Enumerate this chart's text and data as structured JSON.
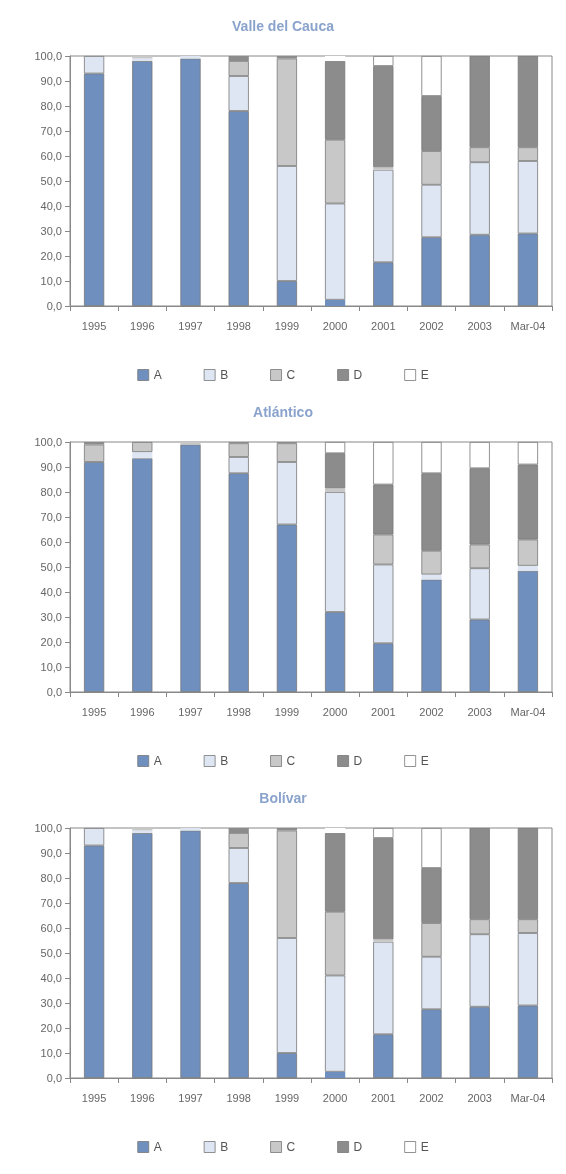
{
  "chart_data": [
    {
      "type": "bar",
      "title": "Valle del Cauca",
      "stacked": true,
      "categories": [
        "1995",
        "1996",
        "1997",
        "1998",
        "1999",
        "2000",
        "2001",
        "2002",
        "2003",
        "Mar-04"
      ],
      "series": [
        {
          "name": "A",
          "color": "#6f8fbf",
          "values": [
            93,
            98,
            99,
            78,
            10,
            2.5,
            17.5,
            27.5,
            28.5,
            29
          ]
        },
        {
          "name": "B",
          "color": "#dde6f2",
          "values": [
            7,
            1,
            1,
            14,
            46,
            38.5,
            37,
            21,
            29,
            29
          ]
        },
        {
          "name": "C",
          "color": "#c8c8c8",
          "values": [
            0,
            1,
            0,
            6,
            43,
            25.5,
            1,
            13.5,
            6,
            5.5
          ]
        },
        {
          "name": "D",
          "color": "#8c8c8c",
          "values": [
            0,
            0,
            0,
            2,
            1,
            31.5,
            40.5,
            22,
            36.5,
            36.5
          ]
        },
        {
          "name": "E",
          "color": "#ffffff",
          "values": [
            0,
            0,
            0,
            0,
            0,
            2,
            4,
            16,
            0,
            0
          ]
        }
      ],
      "ylim": [
        0,
        100
      ],
      "yticks": [
        {
          "value": 0,
          "label": "0,0"
        },
        {
          "value": 10,
          "label": "10,0"
        },
        {
          "value": 20,
          "label": "20,0"
        },
        {
          "value": 30,
          "label": "30,0"
        },
        {
          "value": 40,
          "label": "40,0"
        },
        {
          "value": 50,
          "label": "50,0"
        },
        {
          "value": 60,
          "label": "60,0"
        },
        {
          "value": 70,
          "label": "70,0"
        },
        {
          "value": 80,
          "label": "80,0"
        },
        {
          "value": 90,
          "label": "90,0"
        },
        {
          "value": 100,
          "label": "100,0"
        }
      ],
      "grid": false,
      "legend": "bottom"
    },
    {
      "type": "bar",
      "title": "Atlántico",
      "stacked": true,
      "categories": [
        "1995",
        "1996",
        "1997",
        "1998",
        "1999",
        "2000",
        "2001",
        "2002",
        "2003",
        "Mar-04"
      ],
      "series": [
        {
          "name": "A",
          "color": "#6f8fbf",
          "values": [
            92,
            93.5,
            99,
            87.5,
            67,
            32,
            19.5,
            45,
            29,
            48.5
          ]
        },
        {
          "name": "B",
          "color": "#dde6f2",
          "values": [
            0,
            2.5,
            0,
            6.5,
            25,
            48,
            31.5,
            2,
            20.5,
            2
          ]
        },
        {
          "name": "C",
          "color": "#c8c8c8",
          "values": [
            7,
            4,
            1,
            5.5,
            7.5,
            1.5,
            12,
            9.5,
            9.5,
            10.5
          ]
        },
        {
          "name": "D",
          "color": "#8c8c8c",
          "values": [
            1,
            0,
            0,
            0.5,
            0.5,
            14,
            20,
            31,
            30.5,
            30
          ]
        },
        {
          "name": "E",
          "color": "#ffffff",
          "values": [
            0,
            0,
            0,
            0,
            0,
            4.5,
            17,
            12.5,
            10.5,
            9
          ]
        }
      ],
      "ylim": [
        0,
        100
      ],
      "yticks": [
        {
          "value": 0,
          "label": "0,0"
        },
        {
          "value": 10,
          "label": "10,0"
        },
        {
          "value": 20,
          "label": "20,0"
        },
        {
          "value": 30,
          "label": "30,0"
        },
        {
          "value": 40,
          "label": "40,0"
        },
        {
          "value": 50,
          "label": "50,0"
        },
        {
          "value": 60,
          "label": "60,0"
        },
        {
          "value": 70,
          "label": "70,0"
        },
        {
          "value": 80,
          "label": "80,0"
        },
        {
          "value": 90,
          "label": "90,0"
        },
        {
          "value": 100,
          "label": "100,0"
        }
      ],
      "grid": false,
      "legend": "bottom"
    },
    {
      "type": "bar",
      "title": "Bolívar",
      "stacked": true,
      "categories": [
        "1995",
        "1996",
        "1997",
        "1998",
        "1999",
        "2000",
        "2001",
        "2002",
        "2003",
        "Mar-04"
      ],
      "series": [
        {
          "name": "A",
          "color": "#6f8fbf",
          "values": [
            93,
            98,
            99,
            78,
            10,
            2.5,
            17.5,
            27.5,
            28.5,
            29
          ]
        },
        {
          "name": "B",
          "color": "#dde6f2",
          "values": [
            7,
            1,
            1,
            14,
            46,
            38.5,
            37,
            21,
            29,
            29
          ]
        },
        {
          "name": "C",
          "color": "#c8c8c8",
          "values": [
            0,
            1,
            0,
            6,
            43,
            25.5,
            1,
            13.5,
            6,
            5.5
          ]
        },
        {
          "name": "D",
          "color": "#8c8c8c",
          "values": [
            0,
            0,
            0,
            2,
            1,
            31.5,
            40.5,
            22,
            36.5,
            36.5
          ]
        },
        {
          "name": "E",
          "color": "#ffffff",
          "values": [
            0,
            0,
            0,
            0,
            0,
            2,
            4,
            16,
            0,
            0
          ]
        }
      ],
      "ylim": [
        0,
        100
      ],
      "yticks": [
        {
          "value": 0,
          "label": "0,0"
        },
        {
          "value": 10,
          "label": "10,0"
        },
        {
          "value": 20,
          "label": "20,0"
        },
        {
          "value": 30,
          "label": "30,0"
        },
        {
          "value": 40,
          "label": "40,0"
        },
        {
          "value": 50,
          "label": "50,0"
        },
        {
          "value": 60,
          "label": "60,0"
        },
        {
          "value": 70,
          "label": "70,0"
        },
        {
          "value": 80,
          "label": "80,0"
        },
        {
          "value": 90,
          "label": "90,0"
        },
        {
          "value": 100,
          "label": "100,0"
        }
      ],
      "grid": false,
      "legend": "bottom"
    }
  ]
}
